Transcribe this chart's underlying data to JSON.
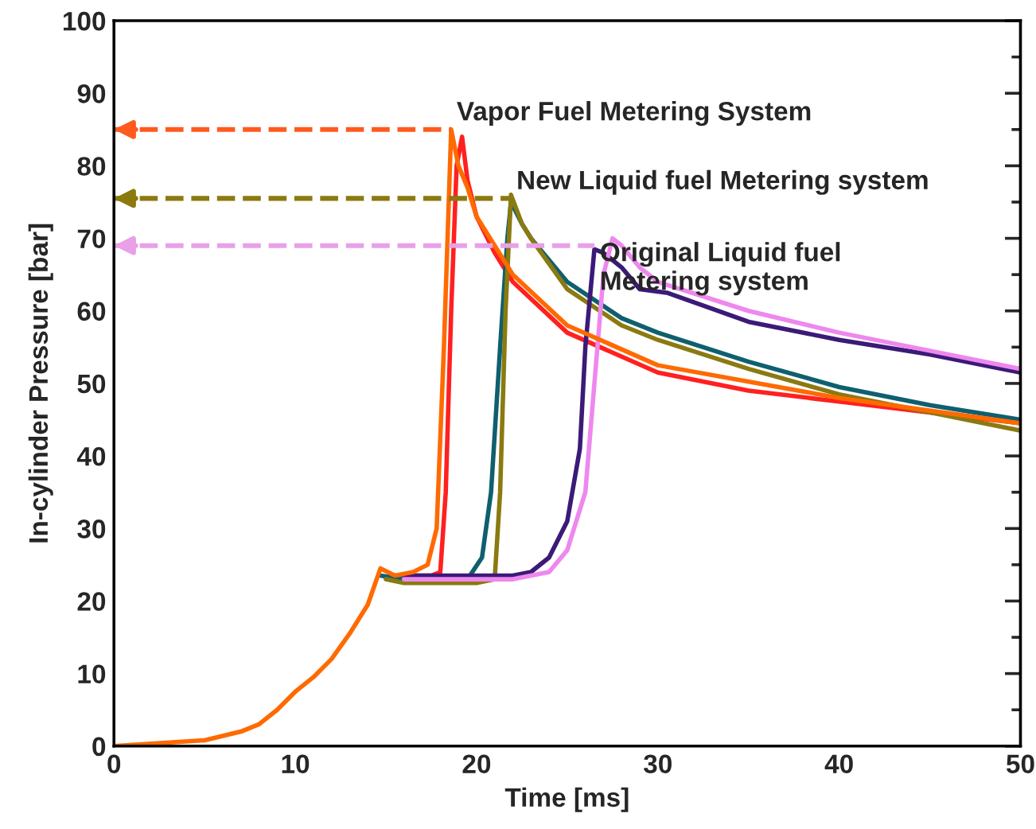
{
  "chart_data": {
    "type": "line",
    "xlabel": "Time [ms]",
    "ylabel": "In-cylinder Pressure [bar]",
    "xlim": [
      0,
      50
    ],
    "ylim": [
      0,
      100
    ],
    "xticks": [
      0,
      10,
      20,
      30,
      40,
      50
    ],
    "yticks": [
      0,
      10,
      20,
      30,
      40,
      50,
      60,
      70,
      80,
      90,
      100
    ],
    "grid": false,
    "legend": false,
    "line_style": "solid",
    "marker": "none",
    "series": [
      {
        "color": "#ff2020",
        "x": [
          15.5,
          16.5,
          17.5,
          18,
          18.3,
          18.6,
          18.9,
          19.2,
          19.5,
          20,
          21,
          22,
          25,
          30,
          35,
          40,
          45,
          50
        ],
        "values": [
          23.5,
          23.5,
          23.5,
          24,
          35,
          60,
          80,
          84,
          78,
          73,
          68,
          64,
          57,
          51.5,
          49,
          47.5,
          46,
          44.5
        ]
      },
      {
        "color": "#0f5f6f",
        "x": [
          14.7,
          16,
          18,
          19.5,
          20.3,
          20.8,
          21.3,
          21.7,
          21.9,
          22.5,
          23,
          25,
          28,
          30,
          35,
          40,
          45,
          50
        ],
        "values": [
          23.5,
          23,
          23,
          23,
          26,
          35,
          55,
          70,
          75,
          72,
          70,
          64,
          59,
          57,
          53,
          49.5,
          47,
          45
        ]
      },
      {
        "color": "#8a7a10",
        "x": [
          15,
          16,
          18,
          20,
          21,
          21.3,
          21.6,
          21.9,
          22.5,
          23,
          25,
          28,
          30,
          35,
          40,
          45,
          50
        ],
        "values": [
          23,
          22.5,
          22.5,
          22.5,
          23,
          35,
          60,
          76,
          72,
          70,
          63,
          58,
          56,
          52,
          48.5,
          46,
          43.5
        ]
      },
      {
        "color": "#3b1a78",
        "x": [
          16,
          18,
          20,
          22,
          23,
          24,
          25,
          25.7,
          26,
          26.5,
          27,
          28,
          29,
          30.5,
          35,
          40,
          45,
          50
        ],
        "values": [
          23.5,
          23.5,
          23.5,
          23.5,
          24,
          26,
          31,
          41,
          55,
          68.5,
          68,
          66,
          63,
          62.5,
          58.5,
          56,
          54,
          51.5
        ]
      },
      {
        "color": "#ee88ee",
        "x": [
          16,
          18,
          20,
          22,
          24,
          25,
          26,
          26.5,
          27,
          27.5,
          28,
          29,
          30,
          35,
          40,
          45,
          50
        ],
        "values": [
          23,
          23,
          23,
          23,
          24,
          27,
          35,
          50,
          65,
          70,
          69,
          66,
          64,
          60,
          57,
          54.5,
          52
        ]
      },
      {
        "color": "#ff6a00",
        "x": [
          0,
          5,
          7,
          8,
          9,
          10,
          11,
          12,
          13,
          14,
          14.7,
          15.5,
          16.5,
          17.3,
          17.8,
          18.2,
          18.6,
          19,
          19.5,
          20,
          22,
          25,
          30,
          40,
          50
        ],
        "values": [
          0,
          0.8,
          2,
          3,
          5,
          7.5,
          9.5,
          12,
          15.5,
          19.5,
          24.5,
          23.5,
          24,
          25,
          30,
          55,
          85,
          80,
          77,
          73,
          65,
          58,
          52.5,
          48,
          44.5
        ]
      }
    ],
    "ref_lines": [
      {
        "axis": "y",
        "value": 85,
        "color": "#ff5a1e",
        "line_style": "dashed",
        "label": "Vapor Fuel Metering System"
      },
      {
        "axis": "y",
        "value": 75.5,
        "color": "#8a7a10",
        "line_style": "dashed",
        "label": "New Liquid fuel Metering system"
      },
      {
        "axis": "y",
        "value": 69,
        "color": "#e8a0e8",
        "line_style": "dashed",
        "label": "Original Liquid fuel\nMetering system"
      }
    ]
  }
}
